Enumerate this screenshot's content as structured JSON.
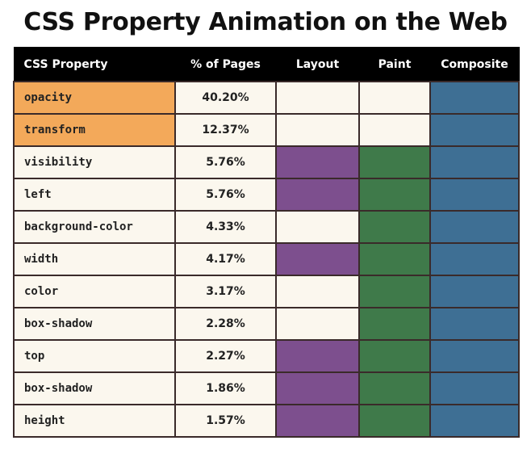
{
  "title": "CSS Property Animation on the Web",
  "colors": {
    "header_bg": "#000000",
    "header_text": "#ffffff",
    "cell_bg": "#fbf7ee",
    "highlight": "#f3a95a",
    "layout": "#7d4f8e",
    "paint": "#3f7a4a",
    "composite": "#3e6f94"
  },
  "table": {
    "headers": {
      "property": "CSS Property",
      "pages": "% of Pages",
      "layout": "Layout",
      "paint": "Paint",
      "composite": "Composite"
    },
    "rows": [
      {
        "property": "opacity",
        "pct": "40.20%",
        "highlight": true,
        "layout": false,
        "paint": false,
        "composite": true
      },
      {
        "property": "transform",
        "pct": "12.37%",
        "highlight": true,
        "layout": false,
        "paint": false,
        "composite": true
      },
      {
        "property": "visibility",
        "pct": "5.76%",
        "highlight": false,
        "layout": true,
        "paint": true,
        "composite": true
      },
      {
        "property": "left",
        "pct": "5.76%",
        "highlight": false,
        "layout": true,
        "paint": true,
        "composite": true
      },
      {
        "property": "background-color",
        "pct": "4.33%",
        "highlight": false,
        "layout": false,
        "paint": true,
        "composite": true
      },
      {
        "property": "width",
        "pct": "4.17%",
        "highlight": false,
        "layout": true,
        "paint": true,
        "composite": true
      },
      {
        "property": "color",
        "pct": "3.17%",
        "highlight": false,
        "layout": false,
        "paint": true,
        "composite": true
      },
      {
        "property": "box-shadow",
        "pct": "2.28%",
        "highlight": false,
        "layout": false,
        "paint": true,
        "composite": true
      },
      {
        "property": "top",
        "pct": "2.27%",
        "highlight": false,
        "layout": true,
        "paint": true,
        "composite": true
      },
      {
        "property": "box-shadow",
        "pct": "1.86%",
        "highlight": false,
        "layout": true,
        "paint": true,
        "composite": true
      },
      {
        "property": "height",
        "pct": "1.57%",
        "highlight": false,
        "layout": true,
        "paint": true,
        "composite": true
      }
    ]
  }
}
